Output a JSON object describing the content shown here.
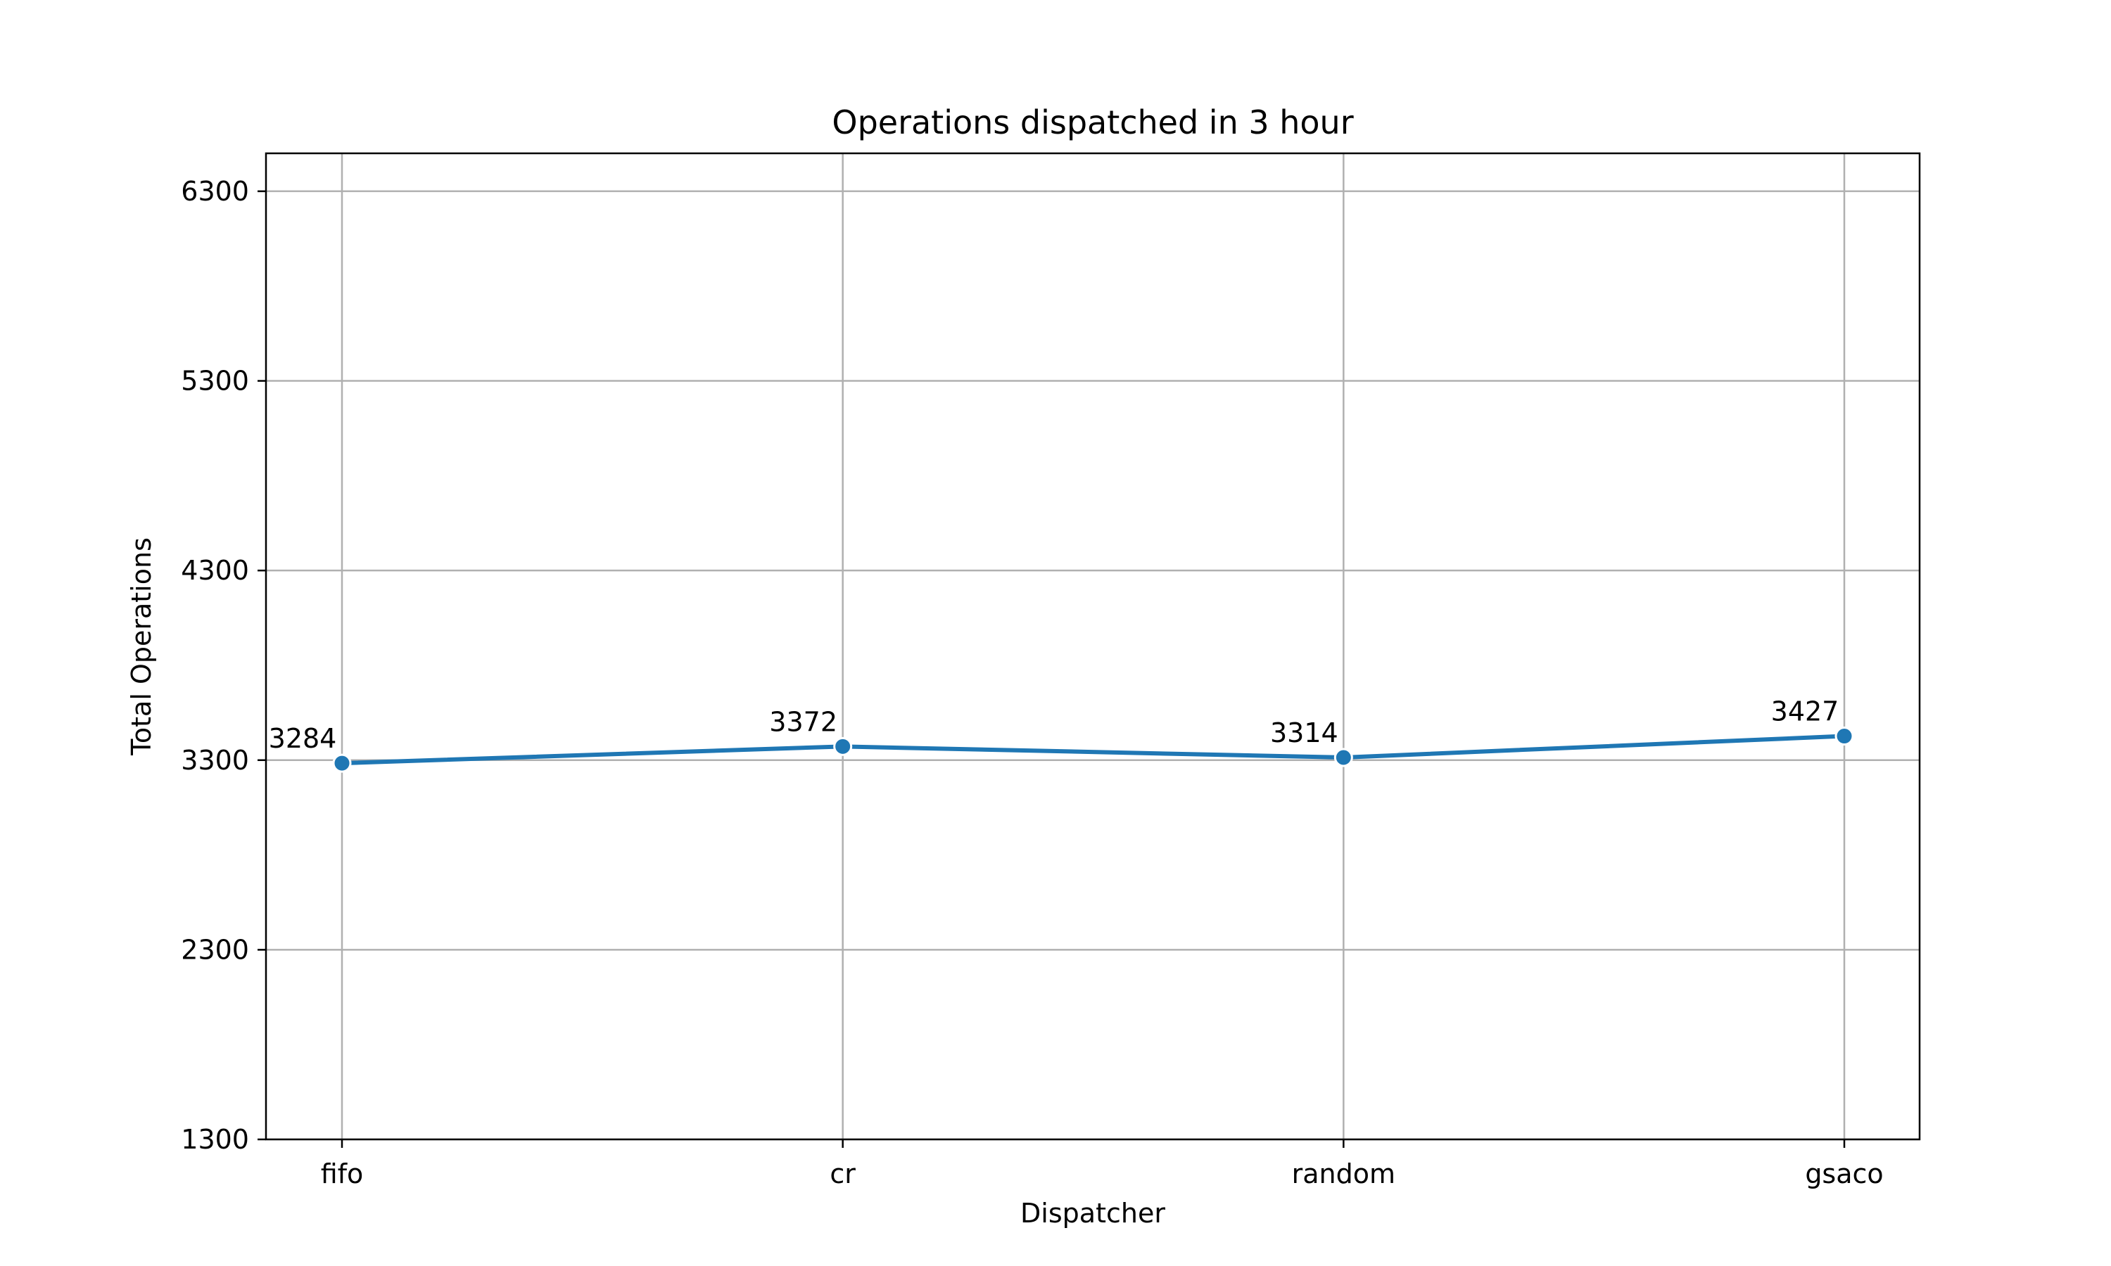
{
  "chart_data": {
    "type": "line",
    "title": "Operations dispatched in 3 hour",
    "xlabel": "Dispatcher",
    "ylabel": "Total Operations",
    "categories": [
      "fifo",
      "cr",
      "random",
      "gsaco"
    ],
    "series": [
      {
        "values": [
          3284,
          3372,
          3314,
          3427
        ]
      }
    ],
    "data_labels": [
      "3284",
      "3372",
      "3314",
      "3427"
    ],
    "yticks": [
      1300,
      2300,
      3300,
      4300,
      5300,
      6300
    ],
    "ytick_labels": [
      "1300",
      "2300",
      "3300",
      "4300",
      "5300",
      "6300"
    ],
    "ylim": [
      1300,
      6500
    ],
    "grid": true,
    "colors": {
      "series": "#1f77b4",
      "grid": "#b0b0b0",
      "axes": "#000000"
    }
  }
}
